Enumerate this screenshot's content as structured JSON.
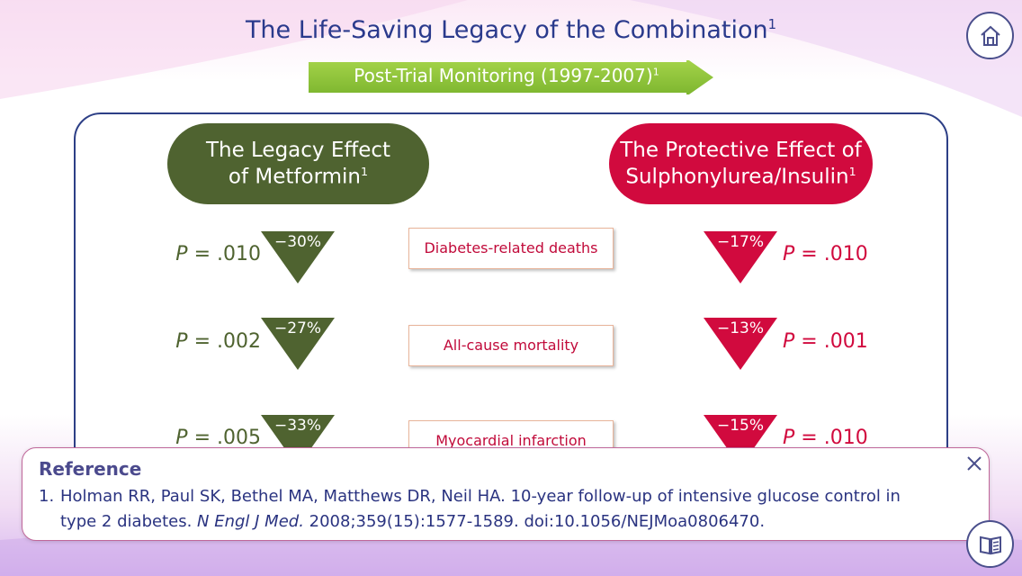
{
  "title": {
    "text": "The Life-Saving Legacy of the Combination",
    "sup": "1"
  },
  "banner": {
    "text": "Post-Trial Monitoring (1997-2007)",
    "sup": "1"
  },
  "left_pill": {
    "line1": "The Legacy Effect",
    "line2": "of Metformin",
    "sup": "1"
  },
  "right_pill": {
    "line1": "The Protective Effect of",
    "line2": "Sulphonylurea/Insulin",
    "sup": "1"
  },
  "p_prefix": "P",
  "rows": [
    {
      "outcome": "Diabetes-related deaths",
      "metformin_change": "−30%",
      "metformin_p": "= .010",
      "su_change": "−17%",
      "su_p": "= .010"
    },
    {
      "outcome": "All-cause mortality",
      "metformin_change": "−27%",
      "metformin_p": "= .002",
      "su_change": "−13%",
      "su_p": "= .001"
    },
    {
      "outcome": "Myocardial infarction",
      "metformin_change": "−33%",
      "metformin_p": "= .005",
      "su_change": "−15%",
      "su_p": "= .010"
    }
  ],
  "reference": {
    "heading": "Reference",
    "number": "1.",
    "line1": "Holman RR, Paul SK, Bethel MA, Matthews DR, Neil HA. 10-year follow-up of intensive glucose control in",
    "line2_pre": "type 2 diabetes. ",
    "journal": "N Engl J Med.",
    "line2_post": " 2008;359(15):1577-1589. doi:10.1056/NEJMoa0806470."
  },
  "icons": {
    "home": "home-icon",
    "close": "close-icon",
    "references": "book-icon"
  },
  "colors": {
    "title": "#2a3a8c",
    "metformin": "#4f6330",
    "su": "#d10a3e",
    "banner": "#8cc63f",
    "outcome_text": "#c10a3a"
  }
}
